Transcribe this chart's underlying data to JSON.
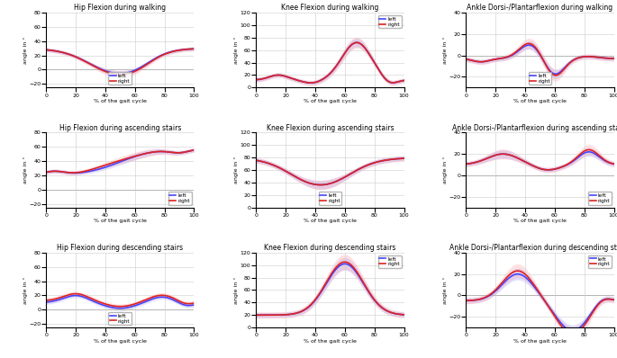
{
  "titles": [
    [
      "Hip Flexion during walking",
      "Knee Flexion during walking",
      "Ankle Dorsi-/Plantarflexion during walking"
    ],
    [
      "Hip Flexion during ascending stairs",
      "Knee Flexion during ascending stairs",
      "Ankle Dorsi-/Plantarflexion during ascending stairs"
    ],
    [
      "Hip Flexion during descending stairs",
      "Knee Flexion during descending stairs",
      "Ankle Dorsi-/Plantarflexion during descending stairs"
    ]
  ],
  "ylabel": "angle in °",
  "xlabel": "% of the gait cycle",
  "left_color": "#4444FF",
  "right_color": "#DD2222",
  "left_fill": "#8888FF",
  "right_fill": "#FF8888",
  "fill_alpha": 0.25,
  "line_width": 1.2,
  "ylims": [
    [
      [
        -25,
        80
      ],
      [
        0,
        120
      ],
      [
        -30,
        40
      ]
    ],
    [
      [
        -25,
        80
      ],
      [
        0,
        120
      ],
      [
        -30,
        40
      ]
    ],
    [
      [
        -25,
        80
      ],
      [
        0,
        120
      ],
      [
        -30,
        40
      ]
    ]
  ]
}
